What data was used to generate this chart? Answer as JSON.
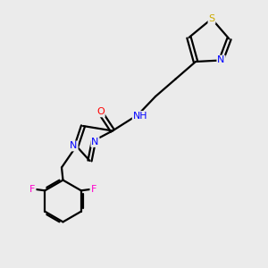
{
  "background_color": "#ebebeb",
  "bond_color": "#000000",
  "atom_colors": {
    "N": "#0000ff",
    "O": "#ff0000",
    "F": "#ff00cc",
    "S": "#ccaa00",
    "C": "#000000",
    "H": "#008888",
    "NH": "#0000ff"
  },
  "figsize": [
    3.0,
    3.0
  ],
  "dpi": 100
}
